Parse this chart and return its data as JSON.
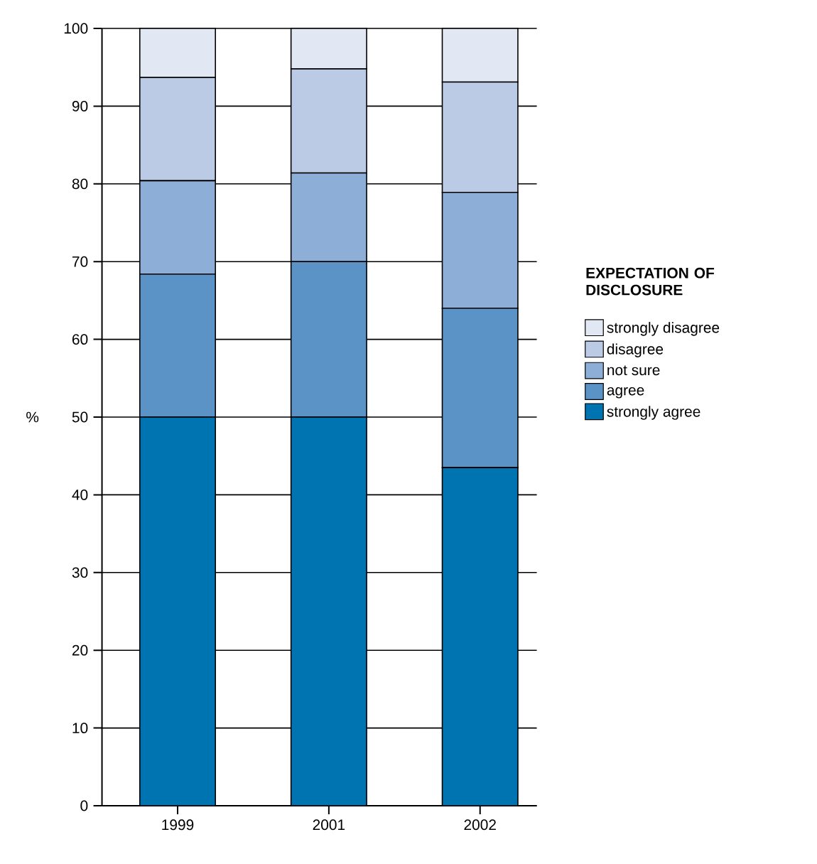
{
  "chart_data": {
    "type": "bar",
    "stacked": true,
    "ylabel": "%",
    "legend_title": "EXPECTATION OF DISCLOSURE",
    "categories": [
      "1999",
      "2001",
      "2002"
    ],
    "series": [
      {
        "name": "strongly agree",
        "color": "#0073b1",
        "values": [
          50,
          50,
          43.5
        ]
      },
      {
        "name": "agree",
        "color": "#5b93c7",
        "values": [
          18.4,
          20,
          20.5
        ]
      },
      {
        "name": "not sure",
        "color": "#8daed6",
        "values": [
          12,
          11.4,
          14.9
        ]
      },
      {
        "name": "disagree",
        "color": "#bccbe5",
        "values": [
          13.3,
          13.4,
          14.2
        ]
      },
      {
        "name": "strongly disagree",
        "color": "#e2e8f3",
        "values": [
          6.3,
          5.2,
          6.9
        ]
      }
    ],
    "ylim": [
      0,
      100
    ],
    "yticks": [
      0,
      10,
      20,
      30,
      40,
      50,
      60,
      70,
      80,
      90,
      100
    ],
    "grid": "y",
    "legend": "right"
  }
}
